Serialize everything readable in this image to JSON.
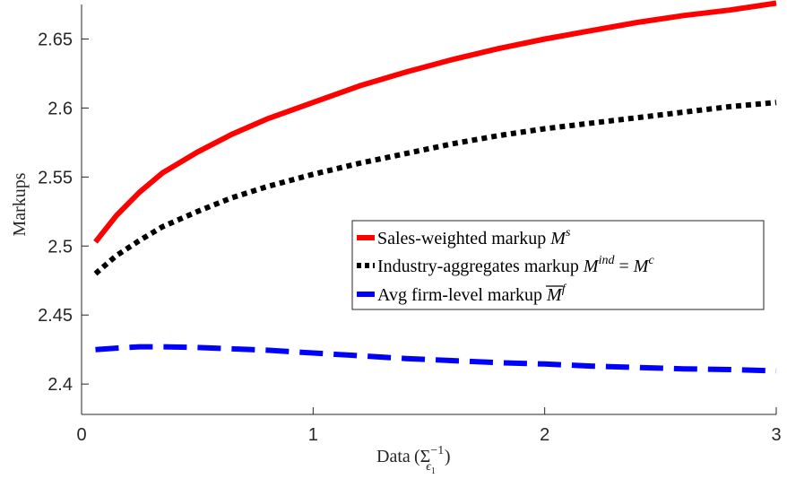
{
  "chart_data": {
    "type": "line",
    "xlabel": "Data",
    "xlabel_math": {
      "symbol": "Σ",
      "sup": "−1",
      "sub": "ϵ",
      "subsub": "1"
    },
    "ylabel": "Markups",
    "xlim": [
      0,
      3
    ],
    "ylim": [
      2.378,
      2.675
    ],
    "xticks": [
      0,
      1,
      2,
      3
    ],
    "xtick_labels": [
      "0",
      "1",
      "2",
      "3"
    ],
    "yticks": [
      2.4,
      2.45,
      2.5,
      2.55,
      2.6,
      2.65
    ],
    "ytick_labels": [
      "2.4",
      "2.45",
      "2.5",
      "2.55",
      "2.6",
      "2.65"
    ],
    "grid": false,
    "legend_position": "right",
    "series": [
      {
        "name": "Sales-weighted markup",
        "legend_math": {
          "base": "M",
          "sup": "s"
        },
        "color": "#ff0000",
        "style": "solid",
        "x": [
          0.06,
          0.15,
          0.25,
          0.35,
          0.5,
          0.65,
          0.8,
          1.0,
          1.2,
          1.4,
          1.6,
          1.8,
          2.0,
          2.2,
          2.4,
          2.6,
          2.8,
          3.0
        ],
        "y": [
          2.503,
          2.522,
          2.539,
          2.553,
          2.568,
          2.581,
          2.592,
          2.604,
          2.616,
          2.626,
          2.635,
          2.643,
          2.65,
          2.656,
          2.662,
          2.667,
          2.671,
          2.676
        ]
      },
      {
        "name": "Industry-aggregates markup",
        "legend_math": {
          "base": "M",
          "sup": "ind",
          "rhs_base": "M",
          "rhs_sup": "c"
        },
        "color": "#000000",
        "style": "dotted",
        "x": [
          0.06,
          0.15,
          0.25,
          0.35,
          0.5,
          0.65,
          0.8,
          1.0,
          1.2,
          1.4,
          1.6,
          1.8,
          2.0,
          2.2,
          2.4,
          2.6,
          2.8,
          3.0
        ],
        "y": [
          2.48,
          2.493,
          2.504,
          2.514,
          2.525,
          2.535,
          2.543,
          2.552,
          2.56,
          2.567,
          2.574,
          2.58,
          2.585,
          2.589,
          2.593,
          2.597,
          2.601,
          2.604
        ]
      },
      {
        "name": "Avg firm-level markup",
        "legend_math": {
          "base": "M",
          "sup": "f",
          "overline": true
        },
        "color": "#0000ff",
        "style": "dashed",
        "x": [
          0.06,
          0.15,
          0.25,
          0.35,
          0.5,
          0.65,
          0.8,
          1.0,
          1.2,
          1.4,
          1.6,
          1.8,
          2.0,
          2.2,
          2.4,
          2.6,
          2.8,
          3.0
        ],
        "y": [
          2.425,
          2.426,
          2.427,
          2.427,
          2.4265,
          2.4255,
          2.4245,
          2.4225,
          2.4205,
          2.4185,
          2.417,
          2.4155,
          2.4145,
          2.413,
          2.412,
          2.411,
          2.4105,
          2.4095
        ]
      }
    ]
  }
}
